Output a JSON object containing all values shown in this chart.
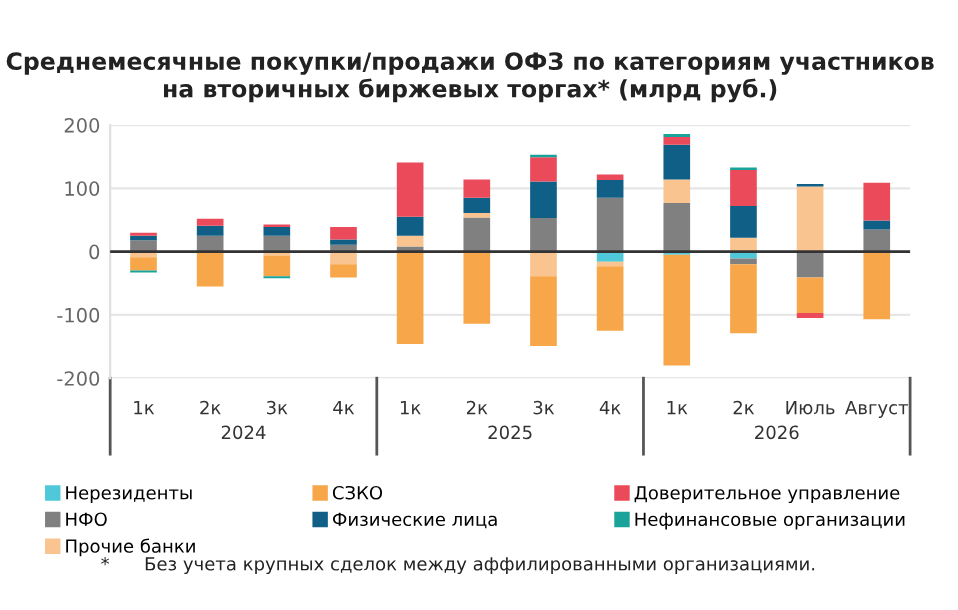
{
  "chart_data": {
    "type": "bar",
    "stacked": true,
    "title": "Среднемесячные покупки/продажи ОФЗ по категориям участников\nна вторичных биржевых торгах* (млрд руб.)",
    "categories": [
      "1к",
      "2к",
      "3к",
      "4к",
      "1к",
      "2к",
      "3к",
      "4к",
      "1к",
      "2к",
      "Июль",
      "Август"
    ],
    "series": [
      {
        "name": "Нерезиденты",
        "color": "#4fc9d9",
        "values": [
          0,
          0,
          0,
          0,
          null,
          0,
          null,
          -16,
          -5,
          -11,
          0,
          null
        ]
      },
      {
        "name": "НФО",
        "color": "#808080",
        "values": [
          18,
          25,
          25,
          11,
          8,
          54,
          53,
          85,
          77,
          -9,
          -41,
          35
        ]
      },
      {
        "name": "Прочие банки",
        "color": "#f9c48f",
        "values": [
          -9,
          0,
          -6,
          -20,
          17,
          7,
          -39,
          -7,
          37,
          22,
          103,
          0
        ]
      },
      {
        "name": "СЗКО",
        "color": "#f7a64a",
        "values": [
          -21,
          -55,
          -33,
          -21,
          -146,
          -114,
          -110,
          -102,
          -175,
          -109,
          -56,
          -107
        ]
      },
      {
        "name": "Физические лица",
        "color": "#0f5f86",
        "values": [
          7,
          16,
          14,
          8,
          30,
          24,
          58,
          28,
          55,
          50,
          4,
          14
        ]
      },
      {
        "name": "Доверительное управление",
        "color": "#ea4a5a",
        "values": [
          5,
          11,
          4,
          20,
          86,
          29,
          38,
          9,
          12,
          57,
          -8,
          60
        ]
      },
      {
        "name": "Нефинансовые организации",
        "color": "#1aa39a",
        "values": [
          -3,
          0,
          -3,
          0,
          0,
          0,
          4,
          0,
          5,
          4,
          0,
          0
        ]
      }
    ],
    "ylim": [
      -200,
      200
    ],
    "yticks": [
      -200,
      -100,
      0,
      100,
      200
    ],
    "grid": "y",
    "legend": "bottom",
    "annotations": [
      "2024",
      "2025",
      "2026",
      "*      Без учета крупных сделок между аффилированными организациями."
    ]
  }
}
